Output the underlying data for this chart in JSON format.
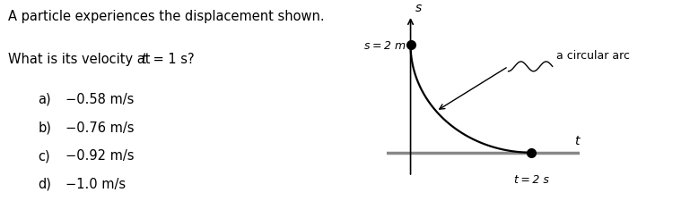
{
  "bg_color": "#ffffff",
  "text_color": "#000000",
  "title_line1": "A particle experiences the displacement shown.",
  "title_line2_pre": "What is its velocity at ",
  "title_line2_italic": "t",
  "title_line2_post": " = 1 s?",
  "choices_raw": [
    [
      "a)",
      "−0.58 m/s"
    ],
    [
      "b)",
      "−0.76 m/s"
    ],
    [
      "c)",
      "−0.92 m/s"
    ],
    [
      "d)",
      "−1.0 m/s"
    ]
  ],
  "font_size_title": 10.5,
  "font_size_choices": 10.5,
  "arc_label": "a circular arc",
  "s_label": "s = 2 m",
  "t_label": "t = 2 s",
  "s_axis_label": "s",
  "t_axis_label": "t",
  "axis_color": "#555555",
  "t_axis_lw": 2.5,
  "s_axis_lw": 1.2,
  "arc_lw": 1.6,
  "dot_size": 7
}
